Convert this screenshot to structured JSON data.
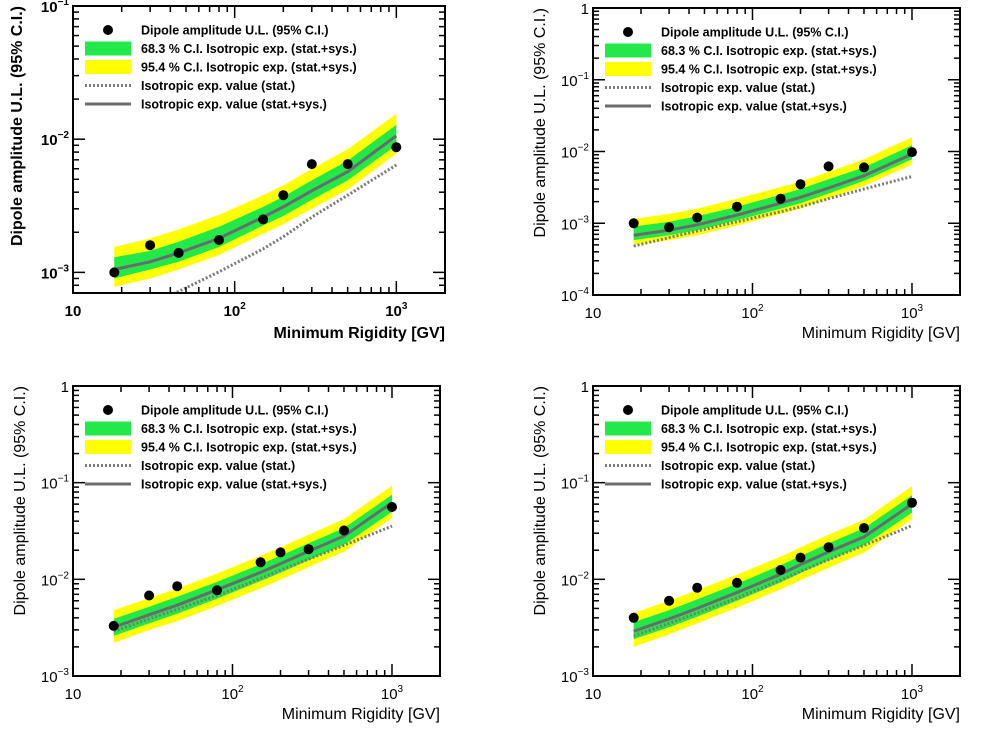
{
  "chart_data": [
    {
      "type": "line",
      "xlabel": "Minimum Rigidity [GV]",
      "ylabel": "Dipole amplitude U.L. (95% C.I.)",
      "xscale": "log",
      "yscale": "log",
      "xlim": [
        10,
        2000
      ],
      "ylim": [
        0.0007,
        0.1
      ],
      "xticks": [
        {
          "v": 10,
          "label": "10"
        },
        {
          "v": 100,
          "label": "10",
          "exp": "2"
        },
        {
          "v": 1000,
          "label": "10",
          "exp": "3"
        }
      ],
      "yticks": [
        {
          "v": 0.001,
          "label": "10",
          "exp": "−3"
        },
        {
          "v": 0.01,
          "label": "10",
          "exp": "−2"
        },
        {
          "v": 0.1,
          "label": "10",
          "exp": "−1"
        }
      ],
      "legend": [
        "Dipole amplitude U.L. (95% C.I.)",
        "68.3 % C.I. Isotropic exp. (stat.+sys.)",
        "95.4 % C.I. Isotropic exp. (stat.+sys.)",
        "Isotropic exp. value (stat.)",
        "Isotropic exp. value (stat.+sys.)"
      ],
      "legend_position": "top-left",
      "x": [
        18,
        30,
        45,
        80,
        150,
        200,
        300,
        500,
        1000
      ],
      "points": [
        0.001,
        0.0016,
        0.0014,
        0.00175,
        0.0025,
        0.0038,
        0.0065,
        0.0065,
        0.0087
      ],
      "expected_stat": [
        0.00045,
        0.00058,
        0.00072,
        0.00101,
        0.0015,
        0.00185,
        0.0026,
        0.0038,
        0.0064
      ],
      "expected_statsys": [
        0.00105,
        0.0012,
        0.0014,
        0.0018,
        0.0026,
        0.0031,
        0.0041,
        0.0057,
        0.0106
      ],
      "band68": [
        [
          0.0009,
          0.0013
        ],
        [
          0.00105,
          0.00145
        ],
        [
          0.0012,
          0.0017
        ],
        [
          0.00155,
          0.0022
        ],
        [
          0.00225,
          0.0031
        ],
        [
          0.00265,
          0.0037
        ],
        [
          0.0035,
          0.0049
        ],
        [
          0.0049,
          0.0069
        ],
        [
          0.009,
          0.0128
        ]
      ],
      "band95": [
        [
          0.00078,
          0.00155
        ],
        [
          0.0009,
          0.0018
        ],
        [
          0.00105,
          0.0021
        ],
        [
          0.00135,
          0.0027
        ],
        [
          0.00195,
          0.0038
        ],
        [
          0.0023,
          0.0045
        ],
        [
          0.003,
          0.006
        ],
        [
          0.0042,
          0.0084
        ],
        [
          0.0078,
          0.0155
        ]
      ],
      "bold_labels": true
    },
    {
      "type": "line",
      "xlabel": "Minimum Rigidity [GV]",
      "ylabel": "Dipole amplitude U.L. (95% C.I.)",
      "xscale": "log",
      "yscale": "log",
      "xlim": [
        10,
        2000
      ],
      "ylim": [
        0.0001,
        1
      ],
      "xticks": [
        {
          "v": 10,
          "label": "10"
        },
        {
          "v": 100,
          "label": "10",
          "exp": "2"
        },
        {
          "v": 1000,
          "label": "10",
          "exp": "3"
        }
      ],
      "yticks": [
        {
          "v": 0.0001,
          "label": "10",
          "exp": "−4"
        },
        {
          "v": 0.001,
          "label": "10",
          "exp": "−3"
        },
        {
          "v": 0.01,
          "label": "10",
          "exp": "−2"
        },
        {
          "v": 0.1,
          "label": "10",
          "exp": "−1"
        },
        {
          "v": 1,
          "label": "1"
        }
      ],
      "legend": [
        "Dipole amplitude U.L. (95% C.I.)",
        "68.3 % C.I. Isotropic exp. (stat.+sys.)",
        "95.4 % C.I. Isotropic exp. (stat.+sys.)",
        "Isotropic exp. value (stat.)",
        "Isotropic exp. value (stat.+sys.)"
      ],
      "legend_position": "top-left",
      "x": [
        18,
        30,
        45,
        80,
        150,
        200,
        300,
        500,
        1000
      ],
      "points": [
        0.001,
        0.00088,
        0.0012,
        0.0017,
        0.0022,
        0.0035,
        0.0062,
        0.006,
        0.0098
      ],
      "expected_stat": [
        0.00048,
        0.00063,
        0.00078,
        0.00105,
        0.00145,
        0.0017,
        0.0022,
        0.003,
        0.0045
      ],
      "expected_statsys": [
        0.00068,
        0.0008,
        0.00095,
        0.0013,
        0.0019,
        0.0023,
        0.0031,
        0.0046,
        0.0092
      ],
      "band68": [
        [
          0.00058,
          0.0009
        ],
        [
          0.00068,
          0.00105
        ],
        [
          0.0008,
          0.00125
        ],
        [
          0.0011,
          0.0017
        ],
        [
          0.0016,
          0.0025
        ],
        [
          0.0019,
          0.003
        ],
        [
          0.0026,
          0.0041
        ],
        [
          0.0039,
          0.006
        ],
        [
          0.0078,
          0.0122
        ]
      ],
      "band95": [
        [
          0.0005,
          0.00115
        ],
        [
          0.00058,
          0.00135
        ],
        [
          0.00068,
          0.0016
        ],
        [
          0.00093,
          0.0022
        ],
        [
          0.00135,
          0.0032
        ],
        [
          0.0016,
          0.0038
        ],
        [
          0.0022,
          0.0052
        ],
        [
          0.0033,
          0.0078
        ],
        [
          0.0066,
          0.0158
        ]
      ],
      "bold_labels": false
    },
    {
      "type": "line",
      "xlabel": "Minimum Rigidity [GV]",
      "ylabel": "Dipole amplitude U.L. (95% C.I.)",
      "xscale": "log",
      "yscale": "log",
      "xlim": [
        10,
        2000
      ],
      "ylim": [
        0.001,
        1
      ],
      "xticks": [
        {
          "v": 10,
          "label": "10"
        },
        {
          "v": 100,
          "label": "10",
          "exp": "2"
        },
        {
          "v": 1000,
          "label": "10",
          "exp": "3"
        }
      ],
      "yticks": [
        {
          "v": 0.001,
          "label": "10",
          "exp": "−3"
        },
        {
          "v": 0.01,
          "label": "10",
          "exp": "−2"
        },
        {
          "v": 0.1,
          "label": "10",
          "exp": "−1"
        },
        {
          "v": 1,
          "label": "1"
        }
      ],
      "legend": [
        "Dipole amplitude U.L. (95% C.I.)",
        "68.3 % C.I. Isotropic exp. (stat.+sys.)",
        "95.4 % C.I. Isotropic exp. (stat.+sys.)",
        "Isotropic exp. value (stat.)",
        "Isotropic exp. value (stat.+sys.)"
      ],
      "legend_position": "top-left",
      "x": [
        18,
        30,
        45,
        80,
        150,
        200,
        300,
        500,
        1000
      ],
      "points": [
        0.0033,
        0.0068,
        0.0085,
        0.0077,
        0.015,
        0.019,
        0.0205,
        0.032,
        0.056
      ],
      "expected_stat": [
        0.0029,
        0.0039,
        0.0049,
        0.0068,
        0.0102,
        0.0125,
        0.0162,
        0.0225,
        0.0355
      ],
      "expected_statsys": [
        0.0032,
        0.0043,
        0.0054,
        0.0078,
        0.0118,
        0.0145,
        0.0195,
        0.028,
        0.062
      ],
      "band68": [
        [
          0.0026,
          0.0039
        ],
        [
          0.0035,
          0.0052
        ],
        [
          0.0044,
          0.0066
        ],
        [
          0.0063,
          0.0094
        ],
        [
          0.0096,
          0.0143
        ],
        [
          0.0117,
          0.0176
        ],
        [
          0.0158,
          0.0236
        ],
        [
          0.0228,
          0.034
        ],
        [
          0.05,
          0.075
        ]
      ],
      "band95": [
        [
          0.0022,
          0.0048
        ],
        [
          0.003,
          0.0064
        ],
        [
          0.0037,
          0.008
        ],
        [
          0.0053,
          0.0115
        ],
        [
          0.0081,
          0.0175
        ],
        [
          0.0099,
          0.0215
        ],
        [
          0.0134,
          0.029
        ],
        [
          0.0193,
          0.042
        ],
        [
          0.043,
          0.093
        ]
      ],
      "bold_labels": false
    },
    {
      "type": "line",
      "xlabel": "Minimum Rigidity [GV]",
      "ylabel": "Dipole amplitude U.L. (95% C.I.)",
      "xscale": "log",
      "yscale": "log",
      "xlim": [
        10,
        2000
      ],
      "ylim": [
        0.001,
        1
      ],
      "xticks": [
        {
          "v": 10,
          "label": "10"
        },
        {
          "v": 100,
          "label": "10",
          "exp": "2"
        },
        {
          "v": 1000,
          "label": "10",
          "exp": "3"
        }
      ],
      "yticks": [
        {
          "v": 0.001,
          "label": "10",
          "exp": "−3"
        },
        {
          "v": 0.01,
          "label": "10",
          "exp": "−2"
        },
        {
          "v": 0.1,
          "label": "10",
          "exp": "−1"
        },
        {
          "v": 1,
          "label": "1"
        }
      ],
      "legend": [
        "Dipole amplitude U.L. (95% C.I.)",
        "68.3 % C.I. Isotropic exp. (stat.+sys.)",
        "95.4 % C.I. Isotropic exp. (stat.+sys.)",
        "Isotropic exp. value (stat.)",
        "Isotropic exp. value (stat.+sys.)"
      ],
      "legend_position": "top-left",
      "x": [
        18,
        30,
        45,
        80,
        150,
        200,
        300,
        500,
        1000
      ],
      "points": [
        0.004,
        0.006,
        0.0082,
        0.0092,
        0.0125,
        0.0168,
        0.0215,
        0.034,
        0.062
      ],
      "expected_stat": [
        0.0026,
        0.0035,
        0.0045,
        0.0064,
        0.0098,
        0.0121,
        0.016,
        0.0225,
        0.036
      ],
      "expected_statsys": [
        0.0029,
        0.0039,
        0.005,
        0.0073,
        0.0113,
        0.0142,
        0.0192,
        0.0275,
        0.06
      ],
      "band68": [
        [
          0.0024,
          0.0036
        ],
        [
          0.0032,
          0.0048
        ],
        [
          0.0041,
          0.0062
        ],
        [
          0.006,
          0.009
        ],
        [
          0.0093,
          0.014
        ],
        [
          0.0116,
          0.0174
        ],
        [
          0.0157,
          0.0236
        ],
        [
          0.0225,
          0.0338
        ],
        [
          0.049,
          0.074
        ]
      ],
      "band95": [
        [
          0.002,
          0.0045
        ],
        [
          0.0027,
          0.006
        ],
        [
          0.0035,
          0.0077
        ],
        [
          0.0051,
          0.0112
        ],
        [
          0.0079,
          0.0172
        ],
        [
          0.0098,
          0.0214
        ],
        [
          0.0132,
          0.029
        ],
        [
          0.0189,
          0.0415
        ],
        [
          0.042,
          0.092
        ]
      ],
      "bold_labels": false
    }
  ],
  "colors": {
    "band68": "#22e84a",
    "band95": "#ffff00",
    "points": "#000000",
    "line_stat": "#7a7a7a",
    "line_statsys": "#6b6b6b",
    "axis": "#000000"
  }
}
